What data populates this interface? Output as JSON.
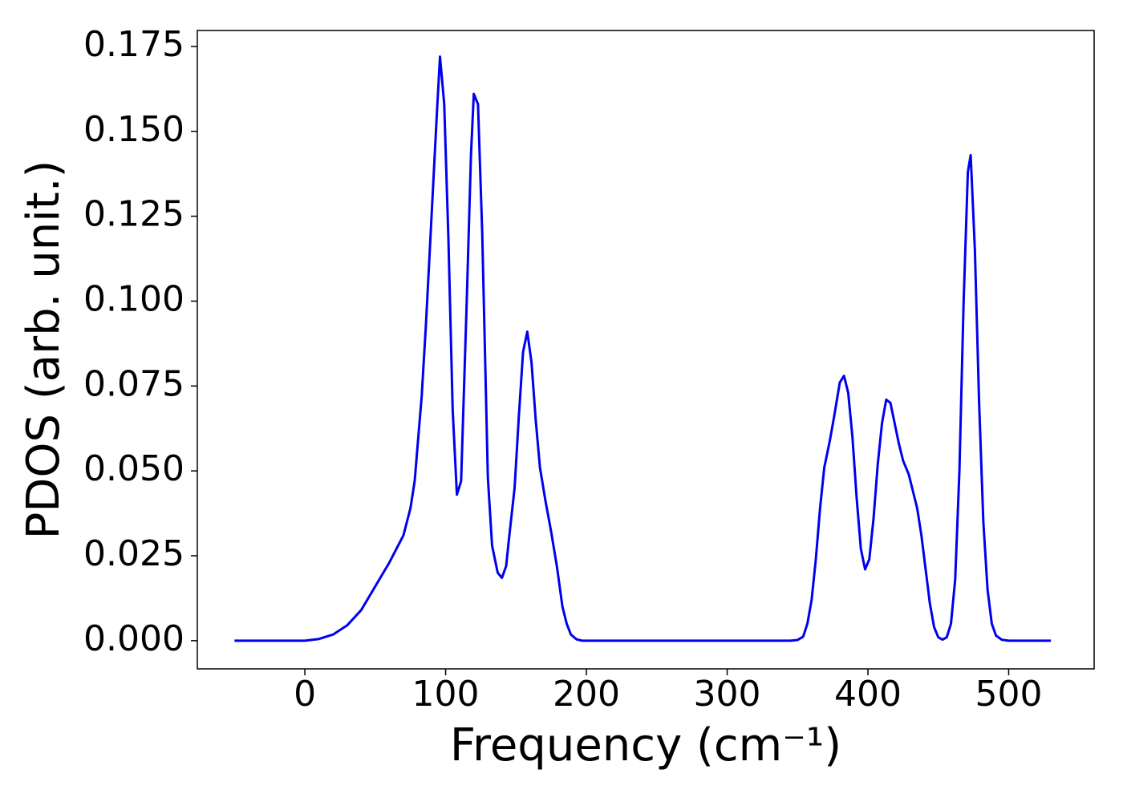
{
  "chart_data": {
    "type": "line",
    "x_label": "Frequency (cm⁻¹)",
    "y_label": "PDOS (arb. unit.)",
    "xlim": [
      -76.4,
      560.7
    ],
    "ylim": [
      -0.0083,
      0.1797
    ],
    "xticks": [
      0,
      100,
      200,
      300,
      400,
      500
    ],
    "yticks": [
      {
        "value": 0,
        "label": "0.000"
      },
      {
        "value": 0.025,
        "label": "0.025"
      },
      {
        "value": 0.05,
        "label": "0.050"
      },
      {
        "value": 0.075,
        "label": "0.075"
      },
      {
        "value": 0.1,
        "label": "0.100"
      },
      {
        "value": 0.125,
        "label": "0.125"
      },
      {
        "value": 0.15,
        "label": "0.150"
      },
      {
        "value": 0.175,
        "label": "0.175"
      }
    ],
    "grid": false,
    "series": [
      {
        "color": "#0000ee",
        "x": [
          -50,
          -25,
          0,
          10,
          20,
          30,
          40,
          50,
          60,
          70,
          75,
          78,
          80,
          83,
          86,
          90,
          94,
          96,
          99,
          102,
          105,
          108,
          111,
          115,
          118,
          120,
          123,
          126,
          130,
          133,
          137,
          140,
          143,
          145,
          149,
          152,
          155,
          158,
          161,
          164,
          167,
          171,
          175,
          179,
          183,
          186,
          189,
          193,
          197,
          250,
          300,
          345,
          350,
          354,
          357,
          360,
          363,
          366,
          369,
          373,
          376,
          380,
          383,
          386,
          389,
          392,
          395,
          398,
          401,
          404,
          407,
          410,
          413,
          416,
          419,
          422,
          425,
          429,
          432,
          435,
          438,
          441,
          444,
          447,
          450,
          453,
          456,
          459,
          462,
          465,
          468,
          471,
          473,
          476,
          479,
          482,
          485,
          488,
          491,
          495,
          500,
          530
        ],
        "values": [
          0,
          0,
          0,
          0.0005,
          0.0018,
          0.0045,
          0.009,
          0.016,
          0.023,
          0.031,
          0.039,
          0.047,
          0.057,
          0.072,
          0.093,
          0.125,
          0.157,
          0.172,
          0.158,
          0.118,
          0.068,
          0.043,
          0.047,
          0.1,
          0.143,
          0.161,
          0.158,
          0.12,
          0.048,
          0.028,
          0.02,
          0.0185,
          0.022,
          0.03,
          0.045,
          0.066,
          0.085,
          0.091,
          0.082,
          0.065,
          0.051,
          0.041,
          0.032,
          0.022,
          0.01,
          0.005,
          0.0018,
          0.0004,
          0,
          0,
          0,
          0,
          0.0002,
          0.0012,
          0.005,
          0.012,
          0.024,
          0.039,
          0.051,
          0.059,
          0.066,
          0.076,
          0.078,
          0.073,
          0.06,
          0.042,
          0.027,
          0.021,
          0.024,
          0.036,
          0.052,
          0.064,
          0.071,
          0.07,
          0.064,
          0.058,
          0.053,
          0.049,
          0.044,
          0.039,
          0.031,
          0.021,
          0.011,
          0.004,
          0.001,
          0.0003,
          0.001,
          0.005,
          0.018,
          0.05,
          0.1,
          0.138,
          0.143,
          0.115,
          0.07,
          0.035,
          0.015,
          0.005,
          0.0015,
          0.0003,
          0,
          0
        ]
      }
    ]
  }
}
